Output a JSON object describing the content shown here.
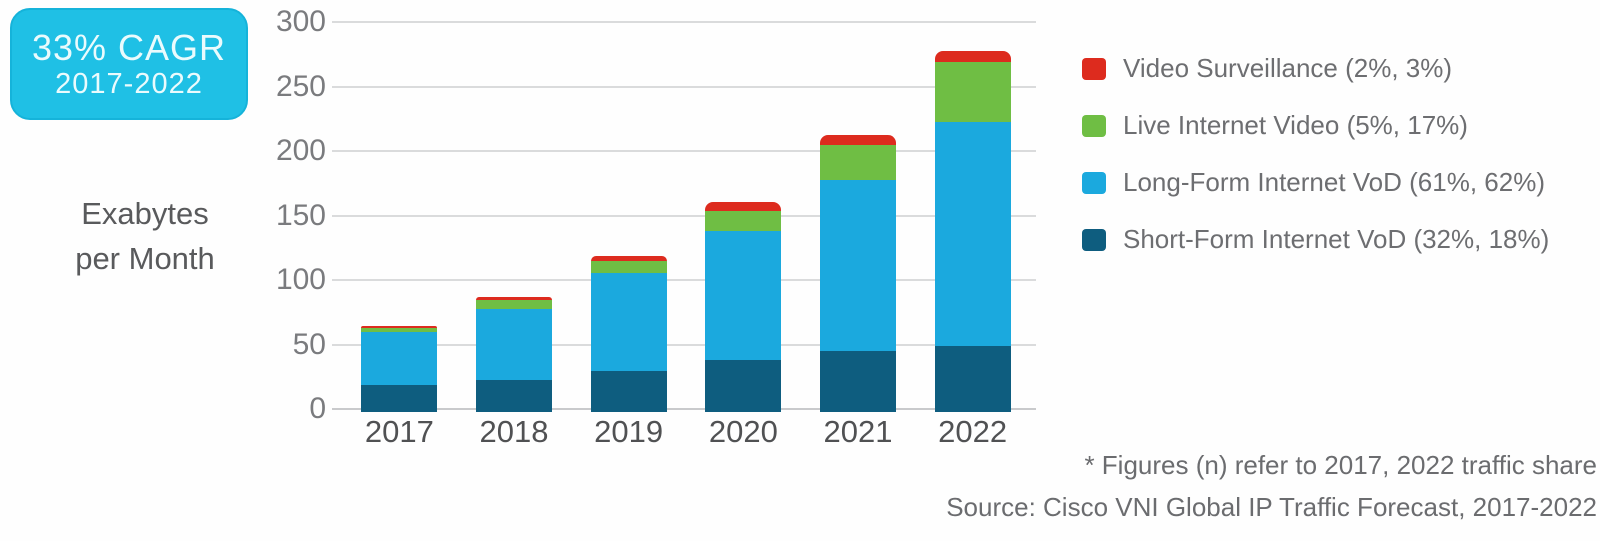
{
  "badge": {
    "line1": "33% CAGR",
    "line2": "2017-2022",
    "bg_color": "#1fc0e5",
    "text_color": "#eafbfd"
  },
  "y_axis": {
    "unit_label_line1": "Exabytes",
    "unit_label_line2": "per Month",
    "ticks": [
      0,
      50,
      100,
      150,
      200,
      250,
      300
    ]
  },
  "chart_data": {
    "type": "bar",
    "stacked": true,
    "title": "",
    "xlabel": "",
    "ylabel": "Exabytes per Month",
    "ylim": [
      0,
      300
    ],
    "grid": true,
    "legend_position": "right",
    "categories": [
      "2017",
      "2018",
      "2019",
      "2020",
      "2021",
      "2022"
    ],
    "series": [
      {
        "name": "Short-Form Internet VoD (32%, 18%)",
        "color": "#0e5d7f",
        "values": [
          21,
          25,
          32,
          40,
          47,
          51
        ]
      },
      {
        "name": "Long-Form Internet VoD (61%, 62%)",
        "color": "#1ba9de",
        "values": [
          41,
          55,
          76,
          100,
          133,
          174
        ]
      },
      {
        "name": "Live Internet Video (5%, 17%)",
        "color": "#6fbe44",
        "values": [
          3,
          7,
          9,
          16,
          27,
          46
        ]
      },
      {
        "name": "Video Surveillance (2%, 3%)",
        "color": "#dd2b1e",
        "values": [
          2,
          2,
          4,
          7,
          8,
          9
        ]
      }
    ],
    "totals": [
      67,
      89,
      121,
      163,
      215,
      280
    ]
  },
  "legend": {
    "items": [
      {
        "label": "Video Surveillance (2%, 3%)",
        "color": "#dd2b1e"
      },
      {
        "label": "Live Internet Video (5%, 17%)",
        "color": "#6fbe44"
      },
      {
        "label": "Long-Form Internet VoD (61%, 62%)",
        "color": "#1ba9de"
      },
      {
        "label": "Short-Form Internet VoD (32%, 18%)",
        "color": "#0e5d7f"
      }
    ]
  },
  "footnotes": {
    "note": "* Figures (n) refer to 2017, 2022 traffic share",
    "source": "Source: Cisco VNI Global IP Traffic Forecast, 2017-2022"
  }
}
